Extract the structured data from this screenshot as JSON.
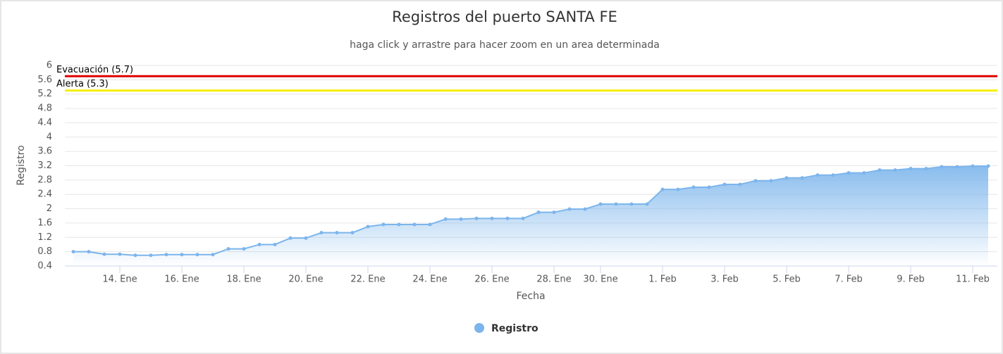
{
  "chart_data": {
    "type": "area",
    "title": "Registros del puerto SANTA FE",
    "subtitle": "haga click y arrastre para hacer zoom en un area determinada",
    "y_label": "Registro",
    "x_label": "Fecha",
    "categories": [
      null,
      null,
      null,
      "14. Ene",
      null,
      null,
      null,
      "16. Ene",
      null,
      null,
      null,
      "18. Ene",
      null,
      null,
      null,
      "20. Ene",
      null,
      null,
      null,
      "22. Ene",
      null,
      null,
      null,
      "24. Ene",
      null,
      null,
      null,
      "26. Ene",
      null,
      null,
      null,
      "28. Ene",
      null,
      null,
      "30. Ene",
      null,
      null,
      null,
      "1. Feb",
      null,
      null,
      null,
      "3. Feb",
      null,
      null,
      null,
      "5. Feb",
      null,
      null,
      null,
      "7. Feb",
      null,
      null,
      null,
      "9. Feb",
      null,
      null,
      null,
      "11. Feb",
      null
    ],
    "series": [
      {
        "name": "Registro",
        "color": "#7cb5ec",
        "values": [
          0.8,
          0.8,
          0.73,
          0.73,
          0.7,
          0.7,
          0.72,
          0.72,
          0.72,
          0.72,
          0.88,
          0.88,
          1.0,
          1.0,
          1.18,
          1.18,
          1.33,
          1.33,
          1.33,
          1.5,
          1.56,
          1.56,
          1.56,
          1.56,
          1.71,
          1.71,
          1.73,
          1.73,
          1.73,
          1.73,
          1.9,
          1.9,
          1.99,
          1.99,
          2.13,
          2.13,
          2.13,
          2.13,
          2.54,
          2.54,
          2.6,
          2.6,
          2.68,
          2.68,
          2.78,
          2.78,
          2.86,
          2.86,
          2.94,
          2.94,
          3.0,
          3.0,
          3.08,
          3.08,
          3.12,
          3.12,
          3.17,
          3.17,
          3.19,
          3.19
        ]
      }
    ],
    "plot_lines": [
      {
        "label": "Evacuación (5.7)",
        "value": 5.7,
        "color": "#e00000"
      },
      {
        "label": "Alerta (5.3)",
        "value": 5.3,
        "color": "#f5f000"
      }
    ],
    "ylim": [
      0.4,
      6
    ],
    "yticks": [
      0.4,
      0.8,
      1.2,
      1.6,
      2,
      2.4,
      2.8,
      3.2,
      3.6,
      4,
      4.4,
      4.8,
      5.2,
      5.6,
      6
    ],
    "grid": true
  }
}
